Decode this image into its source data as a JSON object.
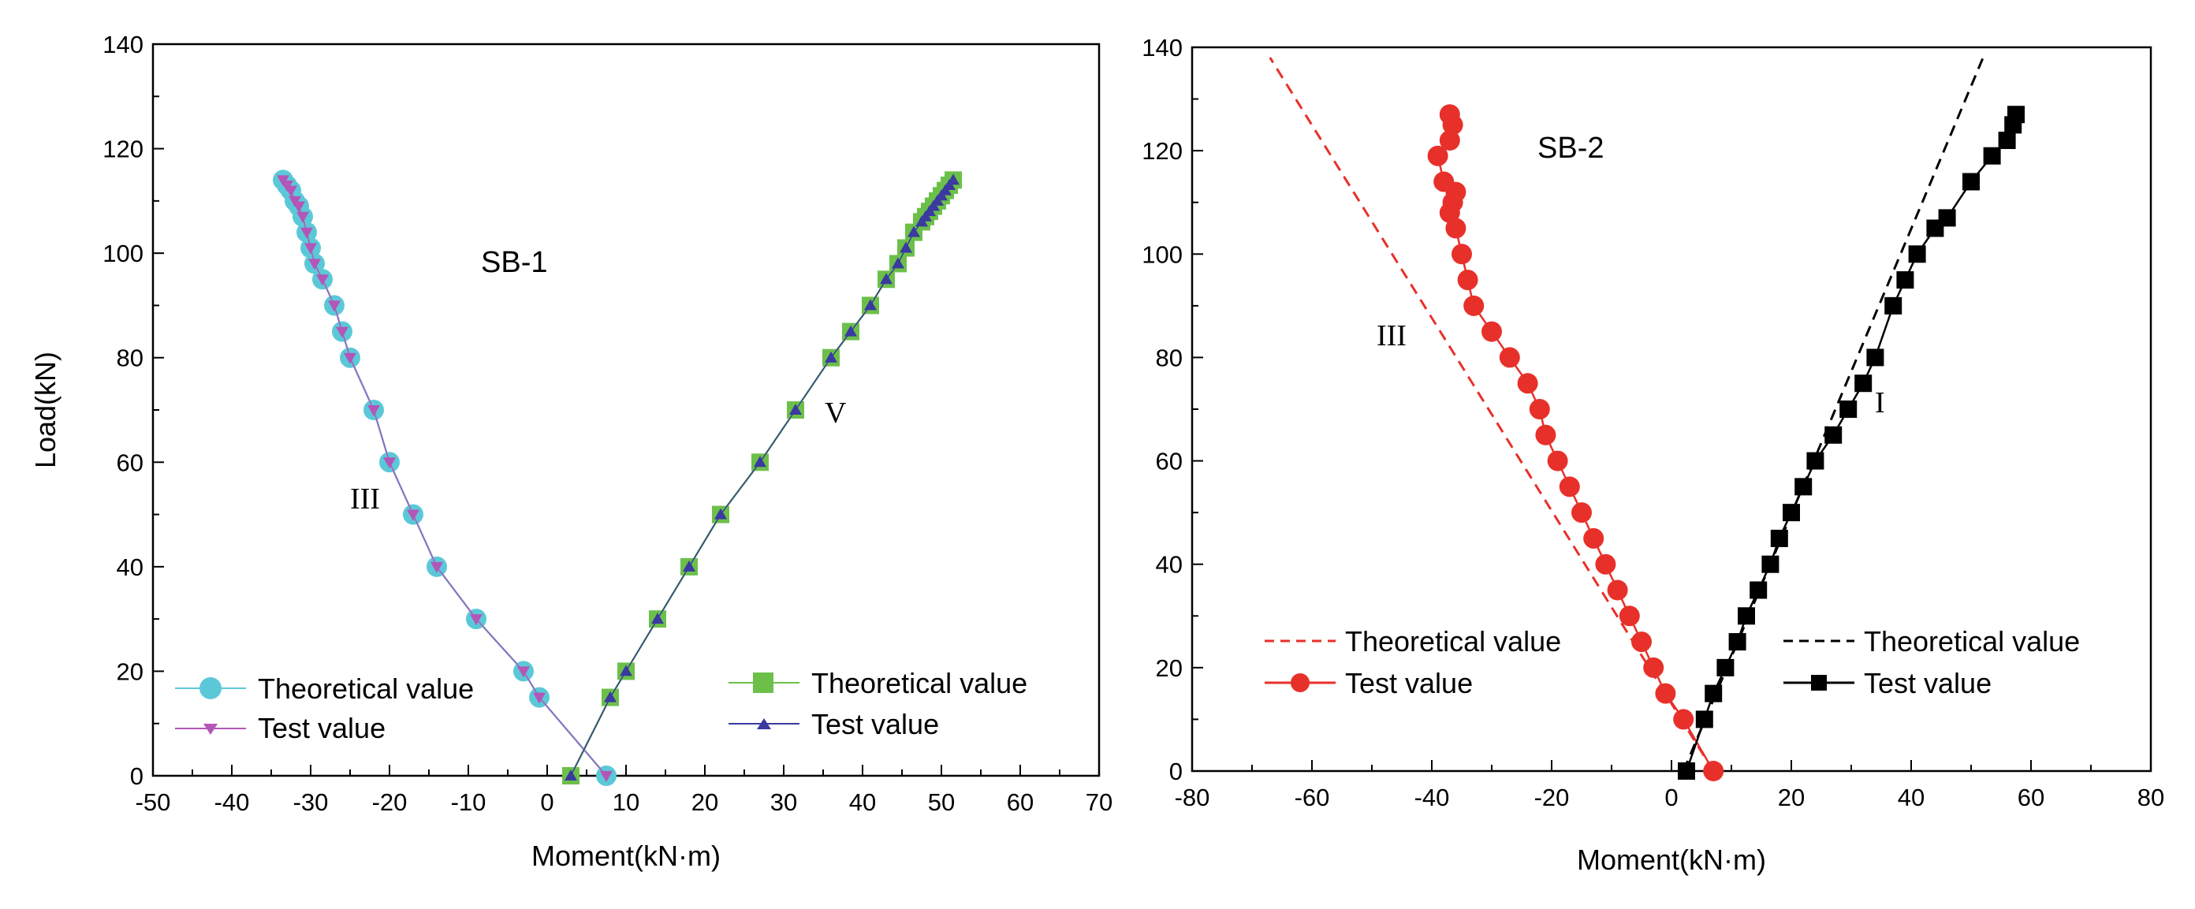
{
  "chart_data": [
    {
      "type": "line",
      "title": "SB-1",
      "xlabel": "Moment(kN·m)",
      "ylabel": "Load(kN)",
      "xlim": [
        -50,
        70
      ],
      "ylim": [
        0,
        140
      ],
      "xticks": [
        -50,
        -40,
        -30,
        -20,
        -10,
        0,
        10,
        20,
        30,
        40,
        50,
        60,
        70
      ],
      "yticks": [
        0,
        20,
        40,
        60,
        80,
        100,
        120,
        140
      ],
      "annotations": [
        {
          "text": "III",
          "x": -28,
          "y": 52
        },
        {
          "text": "V",
          "x": 36,
          "y": 68
        }
      ],
      "series": [
        {
          "name": "Theoretical value",
          "group": "III",
          "marker": "circle",
          "color": "#5bc8d8",
          "x": [
            7.5,
            -1,
            -3,
            -9,
            -14,
            -17,
            -20,
            -22,
            -25,
            -26,
            -27,
            -28.5,
            -29.5,
            -30,
            -30.5,
            -31,
            -31.5,
            -32,
            -32.5,
            -33,
            -33.5
          ],
          "y": [
            0,
            15,
            20,
            30,
            40,
            50,
            60,
            70,
            80,
            85,
            90,
            95,
            98,
            101,
            104,
            107,
            109,
            110,
            112,
            113,
            114
          ]
        },
        {
          "name": "Test value",
          "group": "III",
          "marker": "triangle-down",
          "color": "#b455b8",
          "x": [
            7.5,
            -1,
            -3,
            -9,
            -14,
            -17,
            -20,
            -22,
            -25,
            -26,
            -27,
            -28.5,
            -29.5,
            -30,
            -30.5,
            -31,
            -31.5,
            -32,
            -32.5,
            -33,
            -33.5
          ],
          "y": [
            0,
            15,
            20,
            30,
            40,
            50,
            60,
            70,
            80,
            85,
            90,
            95,
            98,
            101,
            104,
            107,
            109,
            110,
            112,
            113,
            114
          ]
        },
        {
          "name": "Theoretical value",
          "group": "V",
          "marker": "square",
          "color": "#6cc04a",
          "x": [
            3,
            8,
            10,
            14,
            18,
            22,
            27,
            31.5,
            36,
            38.5,
            41,
            43,
            44.5,
            45.5,
            46.5,
            47.5,
            48,
            48.5,
            49,
            49.5,
            50,
            50.5,
            51,
            51.5
          ],
          "y": [
            0,
            15,
            20,
            30,
            40,
            50,
            60,
            70,
            80,
            85,
            90,
            95,
            98,
            101,
            104,
            106,
            107,
            108,
            109,
            110,
            111,
            112,
            113,
            114
          ]
        },
        {
          "name": "Test value",
          "group": "V",
          "marker": "triangle-up",
          "color": "#3a3aa0",
          "x": [
            3,
            8,
            10,
            14,
            18,
            22,
            27,
            31.5,
            36,
            38.5,
            41,
            43,
            44.5,
            45.5,
            46.5,
            47.5,
            48,
            48.5,
            49,
            49.5,
            50,
            50.5,
            51,
            51.5
          ],
          "y": [
            0,
            15,
            20,
            30,
            40,
            50,
            60,
            70,
            80,
            85,
            90,
            95,
            98,
            101,
            104,
            106,
            107,
            108,
            109,
            110,
            111,
            112,
            113,
            114
          ]
        }
      ],
      "legend": [
        {
          "label": "Theoretical value",
          "marker": "circle",
          "color": "#5bc8d8"
        },
        {
          "label": "Test value",
          "marker": "triangle-down",
          "color": "#b455b8"
        },
        {
          "label": "Theoretical value",
          "marker": "square",
          "color": "#6cc04a"
        },
        {
          "label": "Test value",
          "marker": "triangle-up",
          "color": "#3a3aa0"
        }
      ]
    },
    {
      "type": "line",
      "title": "SB-2",
      "xlabel": "Moment(kN·m)",
      "ylabel": "",
      "xlim": [
        -80,
        80
      ],
      "ylim": [
        0,
        140
      ],
      "xticks": [
        -80,
        -60,
        -40,
        -20,
        0,
        20,
        40,
        60,
        80
      ],
      "yticks": [
        0,
        20,
        40,
        60,
        80,
        100,
        120,
        140
      ],
      "annotations": [
        {
          "text": "III",
          "x": -45,
          "y": 83
        },
        {
          "text": "I",
          "x": 33,
          "y": 70
        }
      ],
      "series": [
        {
          "name": "Theoretical value",
          "group": "III",
          "style": "dashed",
          "color": "#e8302a",
          "x": [
            7,
            -67
          ],
          "y": [
            0,
            138
          ]
        },
        {
          "name": "Test value",
          "group": "III",
          "marker": "circle",
          "color": "#e8302a",
          "x": [
            7,
            2,
            -1,
            -3,
            -5,
            -7,
            -9,
            -11,
            -13,
            -15,
            -17,
            -19,
            -21,
            -22,
            -24,
            -27,
            -30,
            -33,
            -34,
            -35,
            -36,
            -37,
            -36.5,
            -36,
            -38,
            -39,
            -37,
            -36.5,
            -37
          ],
          "y": [
            0,
            10,
            15,
            20,
            25,
            30,
            35,
            40,
            45,
            50,
            55,
            60,
            65,
            70,
            75,
            80,
            85,
            90,
            95,
            100,
            105,
            108,
            110,
            112,
            114,
            119,
            122,
            125,
            127
          ]
        },
        {
          "name": "Theoretical value",
          "group": "I",
          "style": "dashed",
          "color": "#000000",
          "x": [
            2,
            52
          ],
          "y": [
            0,
            138
          ]
        },
        {
          "name": "Test value",
          "group": "I",
          "marker": "square",
          "color": "#000000",
          "x": [
            2.5,
            5.5,
            7,
            9,
            11,
            12.5,
            14.5,
            16.5,
            18,
            20,
            22,
            24,
            27,
            29.5,
            32,
            34,
            37,
            39,
            41,
            44,
            46,
            50,
            53.5,
            56,
            57,
            57.5
          ],
          "y": [
            0,
            10,
            15,
            20,
            25,
            30,
            35,
            40,
            45,
            50,
            55,
            60,
            65,
            70,
            75,
            80,
            90,
            95,
            100,
            105,
            107,
            114,
            119,
            122,
            125,
            127
          ]
        }
      ],
      "legend": [
        {
          "label": "Theoretical value",
          "style": "dashed",
          "color": "#e8302a"
        },
        {
          "label": "Test value",
          "marker": "circle",
          "color": "#e8302a"
        },
        {
          "label": "Theoretical value",
          "style": "dashed",
          "color": "#000000"
        },
        {
          "label": "Test value",
          "marker": "square",
          "color": "#000000"
        }
      ]
    }
  ]
}
